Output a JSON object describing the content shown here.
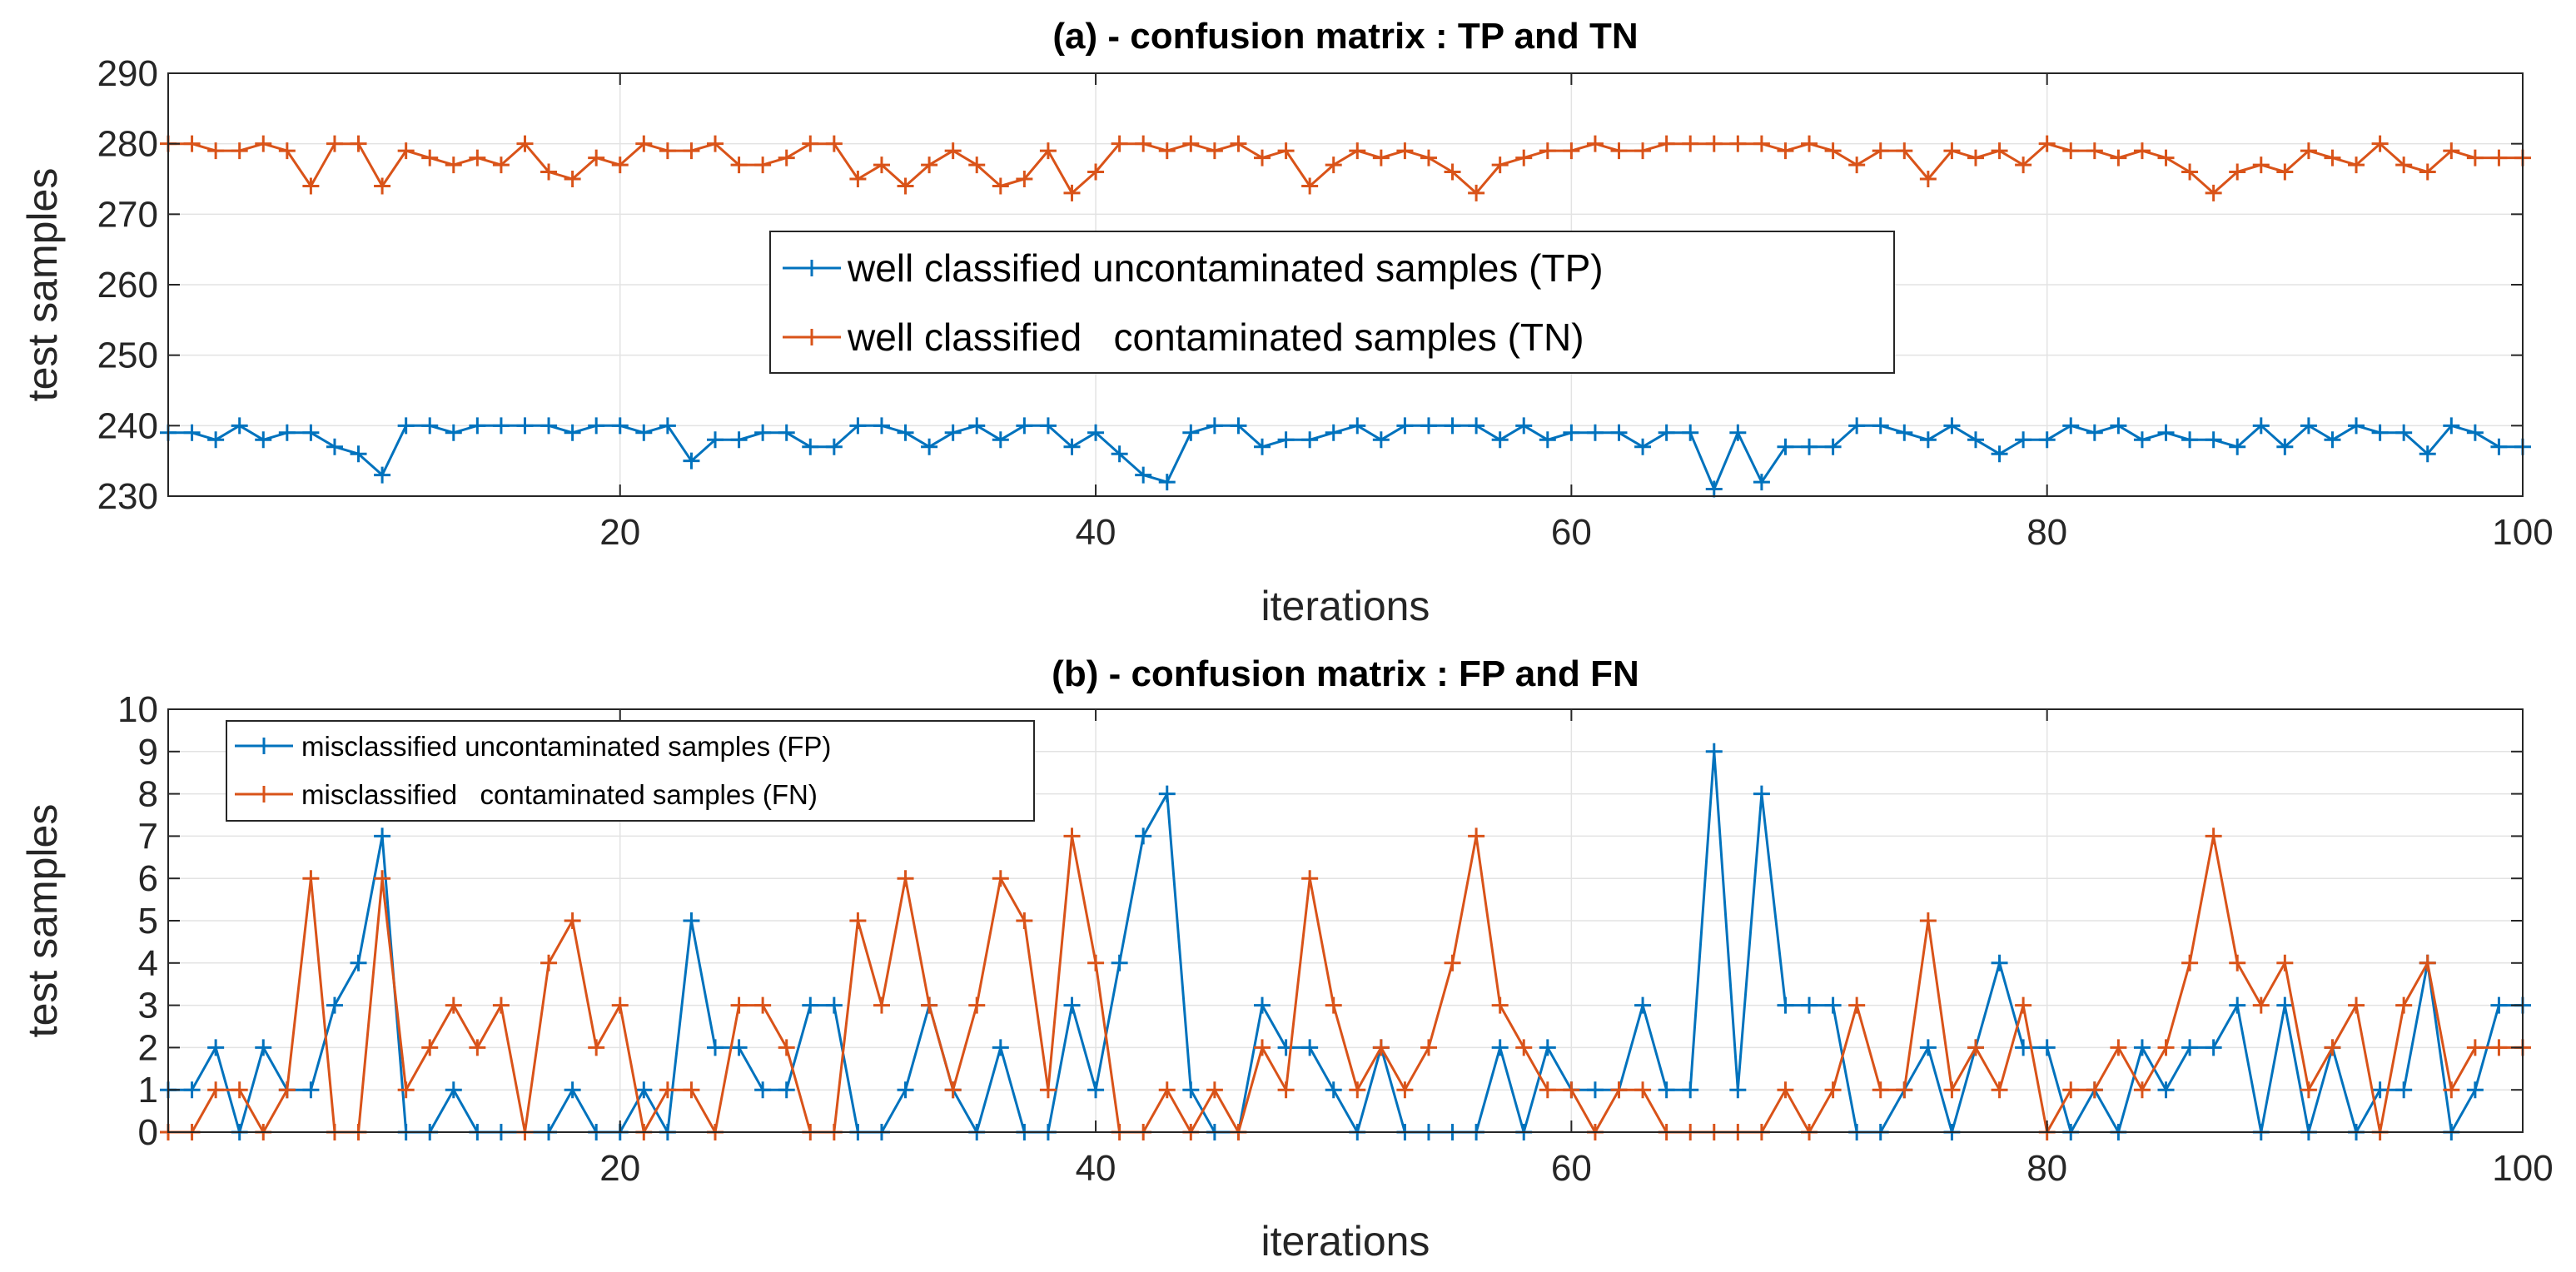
{
  "chart_data": [
    {
      "type": "line",
      "title": "(a) - confusion matrix : TP and TN",
      "xlabel": "iterations",
      "ylabel": "test samples",
      "xlim": [
        1,
        100
      ],
      "ylim": [
        230,
        290
      ],
      "xticks": [
        20,
        40,
        60,
        80,
        100
      ],
      "yticks": [
        230,
        240,
        250,
        260,
        270,
        280,
        290
      ],
      "grid": true,
      "legend_position": "center",
      "series": [
        {
          "name": "well classified uncontaminated samples (TP)",
          "color": "#0072BD",
          "x": [
            1,
            2,
            3,
            4,
            5,
            6,
            7,
            8,
            9,
            10,
            11,
            12,
            13,
            14,
            15,
            16,
            17,
            18,
            19,
            20,
            21,
            22,
            23,
            24,
            25,
            26,
            27,
            28,
            29,
            30,
            31,
            32,
            33,
            34,
            35,
            36,
            37,
            38,
            39,
            40,
            41,
            42,
            43,
            44,
            45,
            46,
            47,
            48,
            49,
            50,
            51,
            52,
            53,
            54,
            55,
            56,
            57,
            58,
            59,
            60,
            61,
            62,
            63,
            64,
            65,
            66,
            67,
            68,
            69,
            70,
            71,
            72,
            73,
            74,
            75,
            76,
            77,
            78,
            79,
            80,
            81,
            82,
            83,
            84,
            85,
            86,
            87,
            88,
            89,
            90,
            91,
            92,
            93,
            94,
            95,
            96,
            97,
            98,
            99,
            100
          ],
          "values": [
            239,
            239,
            238,
            240,
            238,
            239,
            239,
            237,
            236,
            233,
            240,
            240,
            239,
            240,
            240,
            240,
            240,
            239,
            240,
            240,
            239,
            240,
            235,
            238,
            238,
            239,
            239,
            237,
            237,
            240,
            240,
            239,
            237,
            239,
            240,
            238,
            240,
            240,
            237,
            239,
            236,
            233,
            232,
            239,
            240,
            240,
            237,
            238,
            238,
            239,
            240,
            238,
            240,
            240,
            240,
            240,
            238,
            240,
            238,
            239,
            239,
            239,
            237,
            239,
            239,
            231,
            239,
            232,
            237,
            237,
            237,
            240,
            240,
            239,
            238,
            240,
            238,
            236,
            238,
            238,
            240,
            239,
            240,
            238,
            239,
            238,
            238,
            237,
            240,
            237,
            240,
            238,
            240,
            239,
            239,
            236,
            240,
            239,
            237,
            237
          ]
        },
        {
          "name": "well classified   contaminated samples (TN)",
          "color": "#D95319",
          "x": [
            1,
            2,
            3,
            4,
            5,
            6,
            7,
            8,
            9,
            10,
            11,
            12,
            13,
            14,
            15,
            16,
            17,
            18,
            19,
            20,
            21,
            22,
            23,
            24,
            25,
            26,
            27,
            28,
            29,
            30,
            31,
            32,
            33,
            34,
            35,
            36,
            37,
            38,
            39,
            40,
            41,
            42,
            43,
            44,
            45,
            46,
            47,
            48,
            49,
            50,
            51,
            52,
            53,
            54,
            55,
            56,
            57,
            58,
            59,
            60,
            61,
            62,
            63,
            64,
            65,
            66,
            67,
            68,
            69,
            70,
            71,
            72,
            73,
            74,
            75,
            76,
            77,
            78,
            79,
            80,
            81,
            82,
            83,
            84,
            85,
            86,
            87,
            88,
            89,
            90,
            91,
            92,
            93,
            94,
            95,
            96,
            97,
            98,
            99,
            100
          ],
          "values": [
            280,
            280,
            279,
            279,
            280,
            279,
            274,
            280,
            280,
            274,
            279,
            278,
            277,
            278,
            277,
            280,
            276,
            275,
            278,
            277,
            280,
            279,
            279,
            280,
            277,
            277,
            278,
            280,
            280,
            275,
            277,
            274,
            277,
            279,
            277,
            274,
            275,
            279,
            273,
            276,
            280,
            280,
            279,
            280,
            279,
            280,
            278,
            279,
            274,
            277,
            279,
            278,
            279,
            278,
            276,
            273,
            277,
            278,
            279,
            279,
            280,
            279,
            279,
            280,
            280,
            280,
            280,
            280,
            279,
            280,
            279,
            277,
            279,
            279,
            275,
            279,
            278,
            279,
            277,
            280,
            279,
            279,
            278,
            279,
            278,
            276,
            273,
            276,
            277,
            276,
            279,
            278,
            277,
            280,
            277,
            276,
            279,
            278,
            278,
            278
          ]
        }
      ]
    },
    {
      "type": "line",
      "title": "(b) - confusion matrix : FP and FN",
      "xlabel": "iterations",
      "ylabel": "test samples",
      "xlim": [
        1,
        100
      ],
      "ylim": [
        0,
        10
      ],
      "xticks": [
        20,
        40,
        60,
        80,
        100
      ],
      "yticks": [
        0,
        1,
        2,
        3,
        4,
        5,
        6,
        7,
        8,
        9,
        10
      ],
      "grid": true,
      "legend_position": "top-left",
      "series": [
        {
          "name": "misclassified uncontaminated samples (FP)",
          "color": "#0072BD",
          "x": [
            1,
            2,
            3,
            4,
            5,
            6,
            7,
            8,
            9,
            10,
            11,
            12,
            13,
            14,
            15,
            16,
            17,
            18,
            19,
            20,
            21,
            22,
            23,
            24,
            25,
            26,
            27,
            28,
            29,
            30,
            31,
            32,
            33,
            34,
            35,
            36,
            37,
            38,
            39,
            40,
            41,
            42,
            43,
            44,
            45,
            46,
            47,
            48,
            49,
            50,
            51,
            52,
            53,
            54,
            55,
            56,
            57,
            58,
            59,
            60,
            61,
            62,
            63,
            64,
            65,
            66,
            67,
            68,
            69,
            70,
            71,
            72,
            73,
            74,
            75,
            76,
            77,
            78,
            79,
            80,
            81,
            82,
            83,
            84,
            85,
            86,
            87,
            88,
            89,
            90,
            91,
            92,
            93,
            94,
            95,
            96,
            97,
            98,
            99,
            100
          ],
          "values": [
            1,
            1,
            2,
            0,
            2,
            1,
            1,
            3,
            4,
            7,
            0,
            0,
            1,
            0,
            0,
            0,
            0,
            1,
            0,
            0,
            1,
            0,
            5,
            2,
            2,
            1,
            1,
            3,
            3,
            0,
            0,
            1,
            3,
            1,
            0,
            2,
            0,
            0,
            3,
            1,
            4,
            7,
            8,
            1,
            0,
            0,
            3,
            2,
            2,
            1,
            0,
            2,
            0,
            0,
            0,
            0,
            2,
            0,
            2,
            1,
            1,
            1,
            3,
            1,
            1,
            9,
            1,
            8,
            3,
            3,
            3,
            0,
            0,
            1,
            2,
            0,
            2,
            4,
            2,
            2,
            0,
            1,
            0,
            2,
            1,
            2,
            2,
            3,
            0,
            3,
            0,
            2,
            0,
            1,
            1,
            4,
            0,
            1,
            3,
            3
          ]
        },
        {
          "name": "misclassified   contaminated samples (FN)",
          "color": "#D95319",
          "x": [
            1,
            2,
            3,
            4,
            5,
            6,
            7,
            8,
            9,
            10,
            11,
            12,
            13,
            14,
            15,
            16,
            17,
            18,
            19,
            20,
            21,
            22,
            23,
            24,
            25,
            26,
            27,
            28,
            29,
            30,
            31,
            32,
            33,
            34,
            35,
            36,
            37,
            38,
            39,
            40,
            41,
            42,
            43,
            44,
            45,
            46,
            47,
            48,
            49,
            50,
            51,
            52,
            53,
            54,
            55,
            56,
            57,
            58,
            59,
            60,
            61,
            62,
            63,
            64,
            65,
            66,
            67,
            68,
            69,
            70,
            71,
            72,
            73,
            74,
            75,
            76,
            77,
            78,
            79,
            80,
            81,
            82,
            83,
            84,
            85,
            86,
            87,
            88,
            89,
            90,
            91,
            92,
            93,
            94,
            95,
            96,
            97,
            98,
            99,
            100
          ],
          "values": [
            0,
            0,
            1,
            1,
            0,
            1,
            6,
            0,
            0,
            6,
            1,
            2,
            3,
            2,
            3,
            0,
            4,
            5,
            2,
            3,
            0,
            1,
            1,
            0,
            3,
            3,
            2,
            0,
            0,
            5,
            3,
            6,
            3,
            1,
            3,
            6,
            5,
            1,
            7,
            4,
            0,
            0,
            1,
            0,
            1,
            0,
            2,
            1,
            6,
            3,
            1,
            2,
            1,
            2,
            4,
            7,
            3,
            2,
            1,
            1,
            0,
            1,
            1,
            0,
            0,
            0,
            0,
            0,
            1,
            0,
            1,
            3,
            1,
            1,
            5,
            1,
            2,
            1,
            3,
            0,
            1,
            1,
            2,
            1,
            2,
            4,
            7,
            4,
            3,
            4,
            1,
            2,
            3,
            0,
            3,
            4,
            1,
            2,
            2,
            2
          ]
        }
      ]
    }
  ]
}
